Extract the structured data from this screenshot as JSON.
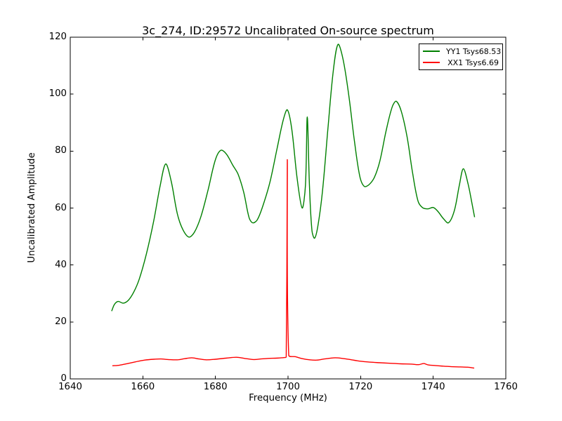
{
  "figure": {
    "title": "3c_274, ID:29572 Uncalibrated On-source spectrum",
    "xlabel": "Frequency (MHz)",
    "ylabel": "Uncalibrated Amplitude"
  },
  "legend": {
    "position": "upper right",
    "entries": [
      {
        "label": "YY1 Tsys68.53",
        "color": "#008000"
      },
      {
        "label": "XX1 Tsys6.69",
        "color": "#ff0000"
      }
    ]
  },
  "chart_data": {
    "type": "line",
    "title": "3c_274, ID:29572 Uncalibrated On-source spectrum",
    "xlabel": "Frequency (MHz)",
    "ylabel": "Uncalibrated Amplitude",
    "xlim": [
      1640,
      1760
    ],
    "ylim": [
      0,
      120
    ],
    "x_ticks": [
      1640,
      1660,
      1680,
      1700,
      1720,
      1740,
      1760
    ],
    "y_ticks": [
      0,
      20,
      40,
      60,
      80,
      100,
      120
    ],
    "grid": false,
    "background": "#ffffff",
    "axes_color": "#000000",
    "legend_position": "upper right",
    "series": [
      {
        "name": "YY1 Tsys68.53",
        "color": "#008000",
        "points": [
          [
            1651.4,
            23.8
          ],
          [
            1652.2,
            26.2
          ],
          [
            1653.2,
            27.2
          ],
          [
            1654.6,
            26.6
          ],
          [
            1656.0,
            27.6
          ],
          [
            1657.5,
            30.5
          ],
          [
            1659.0,
            35.0
          ],
          [
            1661.0,
            44.0
          ],
          [
            1663.0,
            55.5
          ],
          [
            1664.8,
            68.0
          ],
          [
            1666.3,
            75.5
          ],
          [
            1667.8,
            69.5
          ],
          [
            1669.5,
            58.0
          ],
          [
            1671.0,
            52.5
          ],
          [
            1672.7,
            49.8
          ],
          [
            1674.2,
            51.5
          ],
          [
            1676.0,
            57.0
          ],
          [
            1678.0,
            66.5
          ],
          [
            1680.0,
            77.0
          ],
          [
            1681.5,
            80.3
          ],
          [
            1683.0,
            79.0
          ],
          [
            1684.8,
            75.0
          ],
          [
            1686.2,
            72.0
          ],
          [
            1687.8,
            65.5
          ],
          [
            1689.3,
            56.5
          ],
          [
            1690.3,
            54.8
          ],
          [
            1691.5,
            55.8
          ],
          [
            1693.0,
            60.5
          ],
          [
            1695.0,
            69.0
          ],
          [
            1697.0,
            81.0
          ],
          [
            1698.7,
            91.0
          ],
          [
            1699.8,
            94.5
          ],
          [
            1701.0,
            88.0
          ],
          [
            1702.5,
            70.5
          ],
          [
            1703.9,
            60.0
          ],
          [
            1704.8,
            68.0
          ],
          [
            1705.3,
            92.0
          ],
          [
            1705.9,
            68.0
          ],
          [
            1706.6,
            52.0
          ],
          [
            1707.3,
            49.4
          ],
          [
            1708.2,
            53.5
          ],
          [
            1709.5,
            66.0
          ],
          [
            1711.0,
            88.0
          ],
          [
            1712.5,
            108.5
          ],
          [
            1713.8,
            117.5
          ],
          [
            1715.2,
            112.0
          ],
          [
            1716.8,
            99.0
          ],
          [
            1718.3,
            83.5
          ],
          [
            1719.8,
            71.0
          ],
          [
            1721.0,
            67.6
          ],
          [
            1722.3,
            68.2
          ],
          [
            1723.8,
            70.8
          ],
          [
            1725.3,
            76.5
          ],
          [
            1727.0,
            87.0
          ],
          [
            1728.7,
            95.5
          ],
          [
            1729.8,
            97.5
          ],
          [
            1731.2,
            94.0
          ],
          [
            1732.8,
            85.0
          ],
          [
            1734.3,
            72.5
          ],
          [
            1735.8,
            62.5
          ],
          [
            1737.0,
            60.2
          ],
          [
            1738.5,
            59.7
          ],
          [
            1740.0,
            60.2
          ],
          [
            1741.3,
            58.8
          ],
          [
            1742.8,
            56.3
          ],
          [
            1744.2,
            54.8
          ],
          [
            1745.8,
            59.0
          ],
          [
            1747.2,
            68.0
          ],
          [
            1748.3,
            73.8
          ],
          [
            1749.6,
            68.5
          ],
          [
            1750.7,
            61.5
          ],
          [
            1751.4,
            56.8
          ]
        ]
      },
      {
        "name": "XX1 Tsys6.69",
        "color": "#ff0000",
        "points": [
          [
            1651.6,
            4.6
          ],
          [
            1653.5,
            4.8
          ],
          [
            1655.5,
            5.3
          ],
          [
            1658.0,
            6.0
          ],
          [
            1660.5,
            6.6
          ],
          [
            1663.0,
            6.9
          ],
          [
            1665.0,
            7.0
          ],
          [
            1667.0,
            6.8
          ],
          [
            1669.5,
            6.7
          ],
          [
            1671.5,
            7.1
          ],
          [
            1673.5,
            7.4
          ],
          [
            1675.5,
            7.0
          ],
          [
            1677.5,
            6.7
          ],
          [
            1680.0,
            6.9
          ],
          [
            1683.0,
            7.3
          ],
          [
            1685.8,
            7.6
          ],
          [
            1688.0,
            7.2
          ],
          [
            1690.5,
            6.8
          ],
          [
            1692.5,
            7.0
          ],
          [
            1694.5,
            7.2
          ],
          [
            1697.0,
            7.3
          ],
          [
            1699.0,
            7.5
          ],
          [
            1699.5,
            7.7
          ],
          [
            1699.8,
            77.0
          ],
          [
            1700.2,
            8.3
          ],
          [
            1702.0,
            7.8
          ],
          [
            1704.0,
            7.1
          ],
          [
            1706.0,
            6.7
          ],
          [
            1708.0,
            6.6
          ],
          [
            1710.0,
            7.0
          ],
          [
            1712.9,
            7.4
          ],
          [
            1715.0,
            7.2
          ],
          [
            1717.5,
            6.7
          ],
          [
            1720.0,
            6.2
          ],
          [
            1722.5,
            5.9
          ],
          [
            1725.0,
            5.7
          ],
          [
            1728.0,
            5.5
          ],
          [
            1731.0,
            5.3
          ],
          [
            1734.0,
            5.2
          ],
          [
            1736.0,
            5.0
          ],
          [
            1737.4,
            5.4
          ],
          [
            1738.6,
            4.9
          ],
          [
            1740.5,
            4.7
          ],
          [
            1742.5,
            4.5
          ],
          [
            1745.0,
            4.3
          ],
          [
            1747.5,
            4.2
          ],
          [
            1749.5,
            4.1
          ],
          [
            1751.3,
            3.8
          ]
        ]
      }
    ]
  }
}
